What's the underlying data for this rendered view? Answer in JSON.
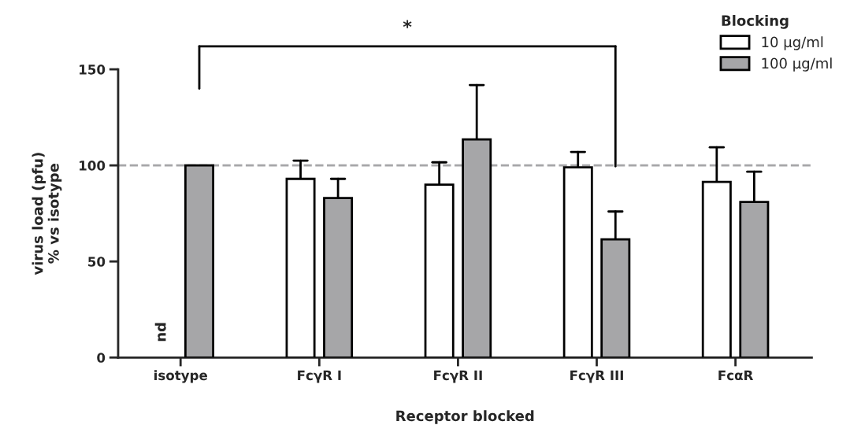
{
  "chart_data": {
    "type": "bar",
    "xlabel": "Receptor blocked",
    "ylabel": "virus load (pfu)\n% vs isotype",
    "legend_title": "Blocking",
    "categories": [
      "isotype",
      "FcγR I",
      "FcγR II",
      "FcγR III",
      "FcαR"
    ],
    "series": [
      {
        "name": "10 μg/ml",
        "color": "#ffffff",
        "values": [
          null,
          93,
          90,
          99,
          91.4
        ],
        "errors": [
          null,
          [
            93,
            102.5
          ],
          [
            90,
            101.6
          ],
          [
            99,
            107
          ],
          [
            91.4,
            109.4
          ]
        ]
      },
      {
        "name": "100 μg/ml",
        "color": "#a6a6a8",
        "values": [
          100,
          83,
          113.5,
          61.5,
          81
        ],
        "errors": [
          null,
          [
            83,
            93
          ],
          [
            113.5,
            141.8
          ],
          [
            61.5,
            76
          ],
          [
            81,
            96.7
          ]
        ]
      }
    ],
    "ylim": [
      0,
      150
    ],
    "yticks": [
      0,
      50,
      100,
      150
    ],
    "ref_lines": [
      {
        "axis": "y",
        "value": 100,
        "color": "#a6a6a8",
        "line_style": "dashed"
      }
    ],
    "annotations": [
      "nd",
      "*"
    ],
    "legend": "top right",
    "grid": false
  }
}
